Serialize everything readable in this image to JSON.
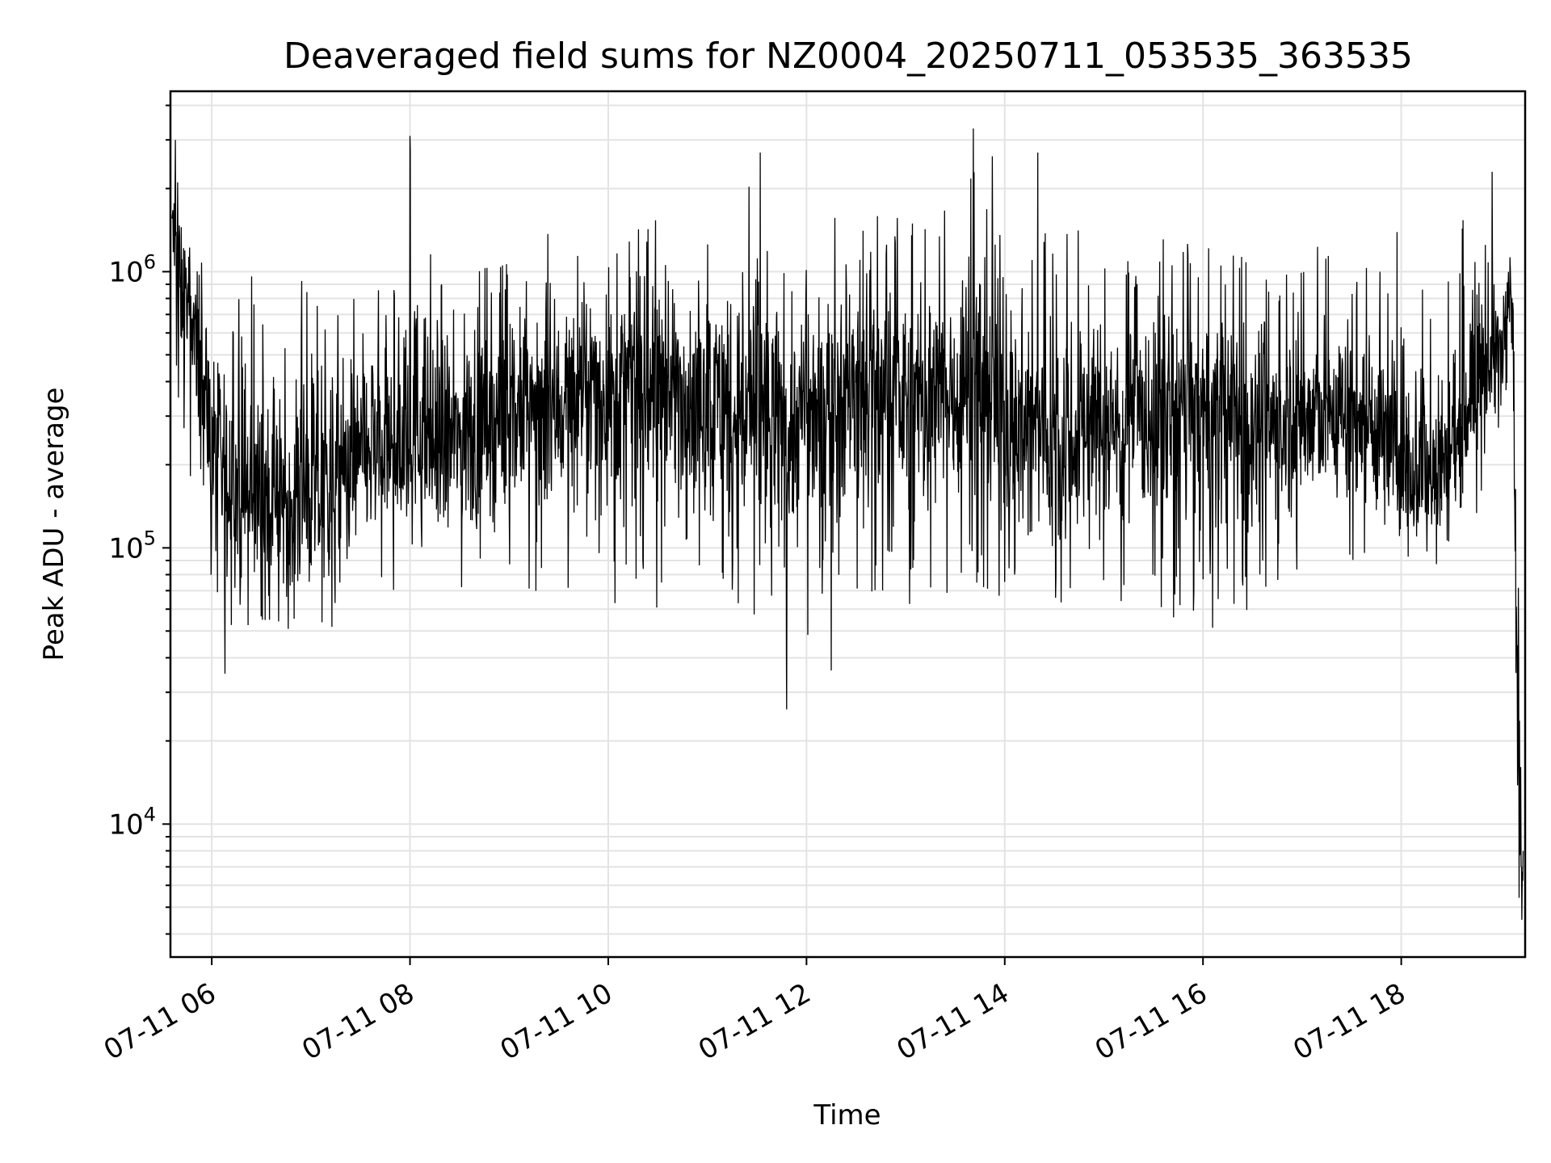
{
  "chart_data": {
    "type": "line",
    "title": "Deaveraged field sums for NZ0004_20250711_053535_363535",
    "xlabel": "Time",
    "ylabel": "Peak ADU - average",
    "yscale": "log",
    "ylim": [
      3300,
      4500000
    ],
    "xlim": [
      "2025-07-11 05:35",
      "2025-07-11 19:15"
    ],
    "grid": true,
    "line_color": "#000000",
    "grid_color": "#e3e3e3",
    "x_ticks": [
      "2025-07-11 06:00",
      "2025-07-11 08:00",
      "2025-07-11 10:00",
      "2025-07-11 12:00",
      "2025-07-11 14:00",
      "2025-07-11 16:00",
      "2025-07-11 18:00"
    ],
    "x_tick_labels": [
      "07-11 06",
      "07-11 08",
      "07-11 10",
      "07-11 12",
      "07-11 14",
      "07-11 16",
      "07-11 18"
    ],
    "y_ticks": [
      {
        "value": 10000,
        "base": "10",
        "exp": "4"
      },
      {
        "value": 100000,
        "base": "10",
        "exp": "5"
      },
      {
        "value": 1000000,
        "base": "10",
        "exp": "6"
      }
    ],
    "series": [
      {
        "x": [
          "2025-07-11 05:36",
          "2025-07-11 05:40",
          "2025-07-11 05:45",
          "2025-07-11 05:50",
          "2025-07-11 05:55",
          "2025-07-11 06:00",
          "2025-07-11 06:05",
          "2025-07-11 06:10",
          "2025-07-11 06:20",
          "2025-07-11 06:30",
          "2025-07-11 06:40",
          "2025-07-11 06:50",
          "2025-07-11 07:00",
          "2025-07-11 07:10",
          "2025-07-11 07:20",
          "2025-07-11 07:30",
          "2025-07-11 07:40",
          "2025-07-11 07:50",
          "2025-07-11 08:00",
          "2025-07-11 08:10",
          "2025-07-11 08:20",
          "2025-07-11 08:30",
          "2025-07-11 08:45",
          "2025-07-11 09:00",
          "2025-07-11 09:15",
          "2025-07-11 09:30",
          "2025-07-11 09:45",
          "2025-07-11 10:00",
          "2025-07-11 10:15",
          "2025-07-11 10:30",
          "2025-07-11 10:45",
          "2025-07-11 11:00",
          "2025-07-11 11:15",
          "2025-07-11 11:30",
          "2025-07-11 11:45",
          "2025-07-11 12:00",
          "2025-07-11 12:15",
          "2025-07-11 12:30",
          "2025-07-11 12:45",
          "2025-07-11 13:00",
          "2025-07-11 13:15",
          "2025-07-11 13:30",
          "2025-07-11 13:45",
          "2025-07-11 14:00",
          "2025-07-11 14:15",
          "2025-07-11 14:30",
          "2025-07-11 14:45",
          "2025-07-11 15:00",
          "2025-07-11 15:15",
          "2025-07-11 15:30",
          "2025-07-11 15:45",
          "2025-07-11 16:00",
          "2025-07-11 16:15",
          "2025-07-11 16:30",
          "2025-07-11 16:45",
          "2025-07-11 17:00",
          "2025-07-11 17:15",
          "2025-07-11 17:30",
          "2025-07-11 17:45",
          "2025-07-11 18:00",
          "2025-07-11 18:15",
          "2025-07-11 18:30",
          "2025-07-11 18:45",
          "2025-07-11 19:00",
          "2025-07-11 19:04",
          "2025-07-11 19:06",
          "2025-07-11 19:08",
          "2025-07-11 19:10",
          "2025-07-11 19:12",
          "2025-07-11 19:14"
        ],
        "y": [
          1500000,
          1100000,
          800000,
          550000,
          400000,
          220000,
          180000,
          160000,
          150000,
          150000,
          140000,
          160000,
          140000,
          160000,
          180000,
          200000,
          220000,
          230000,
          250000,
          240000,
          220000,
          250000,
          280000,
          300000,
          320000,
          340000,
          370000,
          380000,
          400000,
          400000,
          380000,
          350000,
          330000,
          300000,
          280000,
          300000,
          360000,
          400000,
          380000,
          330000,
          340000,
          370000,
          440000,
          300000,
          260000,
          250000,
          270000,
          280000,
          290000,
          300000,
          320000,
          280000,
          300000,
          290000,
          280000,
          290000,
          300000,
          320000,
          280000,
          200000,
          170000,
          230000,
          400000,
          500000,
          900000,
          1000000,
          600000,
          30000,
          8000,
          7000
        ],
        "min": [
          450000,
          300000,
          200000,
          110000,
          90000,
          60000,
          50000,
          45000,
          45000,
          48000,
          50000,
          45000,
          42000,
          50000,
          55000,
          60000,
          60000,
          55000,
          60000,
          60000,
          65000,
          60000,
          60000,
          70000,
          65000,
          65000,
          70000,
          60000,
          55000,
          60000,
          70000,
          65000,
          60000,
          55000,
          40000,
          45000,
          60000,
          55000,
          60000,
          60000,
          60000,
          70000,
          65000,
          65000,
          50000,
          55000,
          60000,
          65000,
          60000,
          60000,
          50000,
          45000,
          50000,
          55000,
          70000,
          75000,
          75000,
          80000,
          70000,
          75000,
          70000,
          70000,
          130000,
          200000,
          300000,
          400000,
          200000,
          5000,
          4500,
          5000
        ],
        "max": [
          3000000,
          2200000,
          1900000,
          1800000,
          1400000,
          1300000,
          1100000,
          1000000,
          1000000,
          1000000,
          900000,
          950000,
          1000000,
          1000000,
          1100000,
          1200000,
          1100000,
          1000000,
          3100000,
          1400000,
          1300000,
          1100000,
          1200000,
          1200000,
          1500000,
          1300000,
          1400000,
          1500000,
          1400000,
          1700000,
          1400000,
          1900000,
          1200000,
          2700000,
          1300000,
          1400000,
          1600000,
          1500000,
          1700000,
          1600000,
          1500000,
          2200000,
          3300000,
          2700000,
          2000000,
          1700000,
          1500000,
          1200000,
          1100000,
          1500000,
          1200000,
          1700000,
          1200000,
          1100000,
          1100000,
          1300000,
          1200000,
          1200000,
          1100000,
          1600000,
          1000000,
          1100000,
          2300000,
          1500000,
          1400000,
          1300000,
          1200000,
          200000,
          160000,
          12000
        ]
      }
    ],
    "extreme_points": [
      {
        "x": "2025-07-11 05:38",
        "y": 3000000
      },
      {
        "x": "2025-07-11 06:08",
        "y": 35000
      },
      {
        "x": "2025-07-11 08:00",
        "y": 3100000
      },
      {
        "x": "2025-07-11 11:32",
        "y": 2700000
      },
      {
        "x": "2025-07-11 11:48",
        "y": 26000
      },
      {
        "x": "2025-07-11 12:15",
        "y": 36000
      },
      {
        "x": "2025-07-11 13:41",
        "y": 3300000
      },
      {
        "x": "2025-07-11 14:20",
        "y": 2700000
      },
      {
        "x": "2025-07-11 18:55",
        "y": 2300000
      },
      {
        "x": "2025-07-11 19:13",
        "y": 4500
      }
    ]
  }
}
